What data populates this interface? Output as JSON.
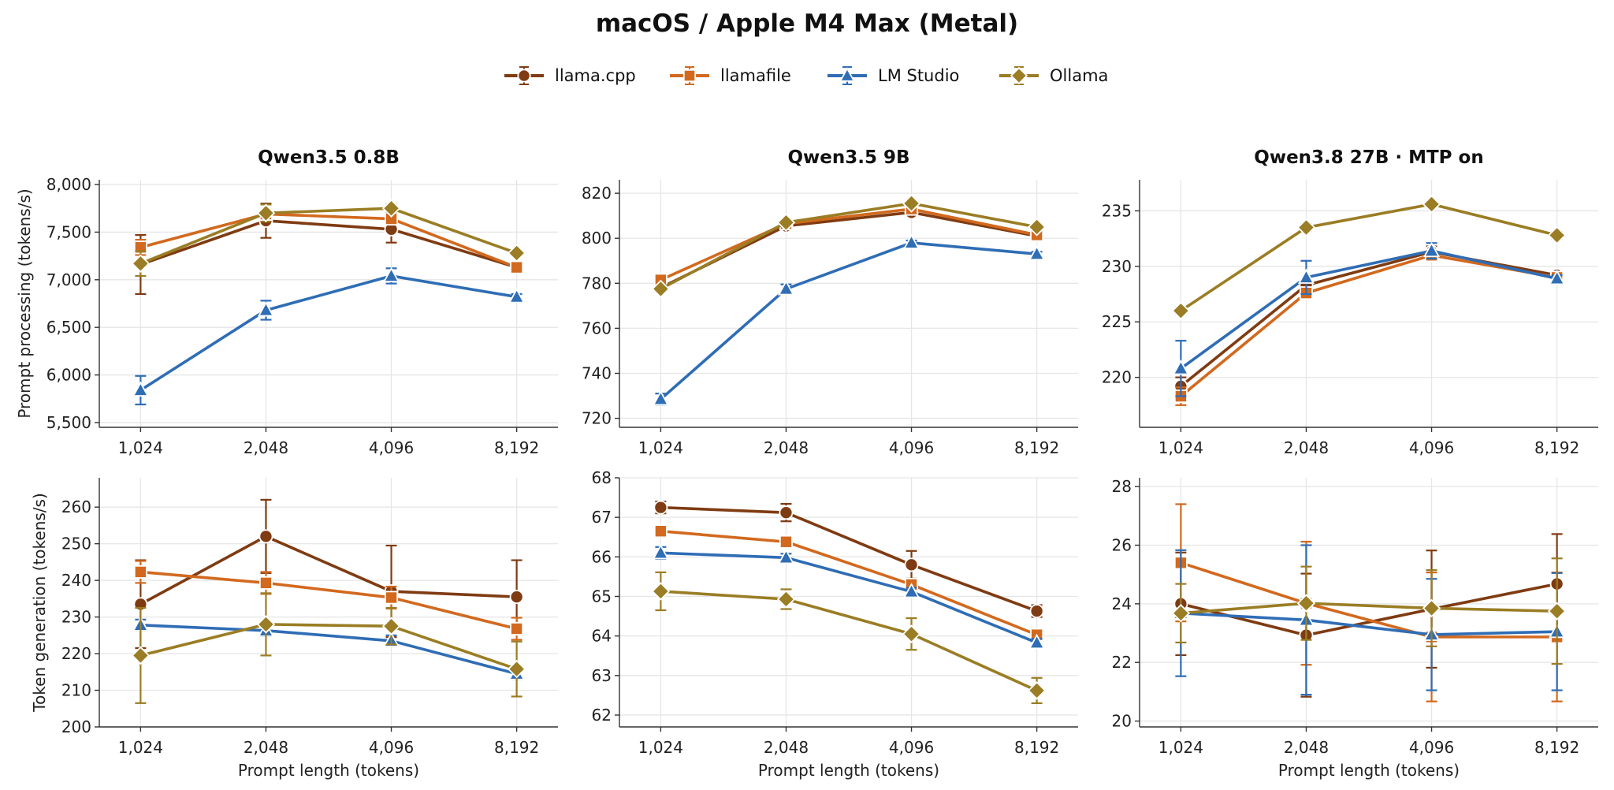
{
  "figure_title": "macOS / Apple M4 Max (Metal)",
  "colors": {
    "llama.cpp": "#7f3b12",
    "llamafile": "#d2691e",
    "LM Studio": "#2f6db5",
    "Ollama": "#9a7d24"
  },
  "legend": [
    {
      "name": "llama.cpp",
      "marker": "circle"
    },
    {
      "name": "llamafile",
      "marker": "square"
    },
    {
      "name": "LM Studio",
      "marker": "triangle"
    },
    {
      "name": "Ollama",
      "marker": "diamond"
    }
  ],
  "chart_data": [
    {
      "type": "line",
      "title": "Qwen3.5 0.8B",
      "xlabel": "",
      "ylabel": "Prompt processing (tokens/s)",
      "categories": [
        "1,024",
        "2,048",
        "4,096",
        "8,192"
      ],
      "ylim": [
        5450,
        8050
      ],
      "yticks": [
        5500,
        6000,
        6500,
        7000,
        7500,
        8000
      ],
      "ytick_labels": [
        "5,500",
        "6,000",
        "6,500",
        "7,000",
        "7,500",
        "8,000"
      ],
      "series": [
        {
          "name": "llama.cpp",
          "values": [
            7160,
            7620,
            7530,
            7130
          ],
          "err": [
            310,
            180,
            140,
            30
          ]
        },
        {
          "name": "llamafile",
          "values": [
            7340,
            7690,
            7640,
            7130
          ],
          "err": [
            80,
            60,
            60,
            30
          ]
        },
        {
          "name": "LM Studio",
          "values": [
            5840,
            6680,
            7040,
            6820
          ],
          "err": [
            150,
            100,
            80,
            30
          ]
        },
        {
          "name": "Ollama",
          "values": [
            7170,
            7700,
            7750,
            7280
          ],
          "err": [
            130,
            90,
            40,
            30
          ]
        }
      ]
    },
    {
      "type": "line",
      "title": "Qwen3.5 9B",
      "xlabel": "",
      "ylabel": "",
      "categories": [
        "1,024",
        "2,048",
        "4,096",
        "8,192"
      ],
      "ylim": [
        716,
        826
      ],
      "yticks": [
        720,
        740,
        760,
        780,
        800,
        820
      ],
      "ytick_labels": [
        "720",
        "740",
        "760",
        "780",
        "800",
        "820"
      ],
      "series": [
        {
          "name": "llama.cpp",
          "values": [
            778,
            805.5,
            811.5,
            801
          ],
          "err": [
            1,
            1,
            1,
            1
          ]
        },
        {
          "name": "llamafile",
          "values": [
            781.5,
            806.5,
            813,
            801.5
          ],
          "err": [
            1,
            1,
            1,
            1
          ]
        },
        {
          "name": "LM Studio",
          "values": [
            728.5,
            777.5,
            798,
            793
          ],
          "err": [
            2.5,
            2,
            1,
            1
          ]
        },
        {
          "name": "Ollama",
          "values": [
            777.5,
            807,
            815.5,
            805
          ],
          "err": [
            1,
            1,
            1,
            1
          ]
        }
      ]
    },
    {
      "type": "line",
      "title": "Qwen3.8 27B  ·  MTP on",
      "xlabel": "",
      "ylabel": "",
      "categories": [
        "1,024",
        "2,048",
        "4,096",
        "8,192"
      ],
      "ylim": [
        215.5,
        237.8
      ],
      "yticks": [
        220,
        225,
        230,
        235
      ],
      "ytick_labels": [
        "220",
        "225",
        "230",
        "235"
      ],
      "series": [
        {
          "name": "llama.cpp",
          "values": [
            219.2,
            228.3,
            231.3,
            229.2
          ],
          "err": [
            0.8,
            0.5,
            0.5,
            0.3
          ]
        },
        {
          "name": "llamafile",
          "values": [
            218.3,
            227.6,
            231.0,
            229.0
          ],
          "err": [
            0.8,
            0.5,
            0.5,
            0.3
          ]
        },
        {
          "name": "LM Studio",
          "values": [
            220.8,
            229.0,
            231.4,
            228.9
          ],
          "err": [
            2.5,
            1.5,
            0.7,
            0.3
          ]
        },
        {
          "name": "Ollama",
          "values": [
            226.0,
            233.5,
            235.6,
            232.8
          ],
          "err": [
            0.3,
            0.3,
            0.3,
            0.3
          ]
        }
      ]
    },
    {
      "type": "line",
      "title": "",
      "xlabel": "Prompt length (tokens)",
      "ylabel": "Token generation (tokens/s)",
      "categories": [
        "1,024",
        "2,048",
        "4,096",
        "8,192"
      ],
      "ylim": [
        200,
        268
      ],
      "yticks": [
        200,
        210,
        220,
        230,
        240,
        250,
        260
      ],
      "ytick_labels": [
        "200",
        "210",
        "220",
        "230",
        "240",
        "250",
        "260"
      ],
      "series": [
        {
          "name": "llama.cpp",
          "values": [
            233.5,
            252,
            237,
            235.5
          ],
          "err": [
            12,
            10,
            12.5,
            10
          ]
        },
        {
          "name": "llamafile",
          "values": [
            242.3,
            239.3,
            235.3,
            226.8
          ],
          "err": [
            3,
            3,
            3,
            3
          ]
        },
        {
          "name": "LM Studio",
          "values": [
            227.8,
            226.3,
            223.5,
            214.5
          ],
          "err": [
            1.5,
            1.5,
            1.5,
            1.5
          ]
        },
        {
          "name": "Ollama",
          "values": [
            219.5,
            228,
            227.5,
            215.8
          ],
          "err": [
            13,
            8.5,
            5,
            7.5
          ]
        }
      ]
    },
    {
      "type": "line",
      "title": "",
      "xlabel": "Prompt length (tokens)",
      "ylabel": "",
      "categories": [
        "1,024",
        "2,048",
        "4,096",
        "8,192"
      ],
      "ylim": [
        61.7,
        68
      ],
      "yticks": [
        62,
        63,
        64,
        65,
        66,
        67,
        68
      ],
      "ytick_labels": [
        "62",
        "63",
        "64",
        "65",
        "66",
        "67",
        "68"
      ],
      "series": [
        {
          "name": "llama.cpp",
          "values": [
            67.25,
            67.12,
            65.8,
            64.63
          ],
          "err": [
            0.15,
            0.22,
            0.35,
            0.15
          ]
        },
        {
          "name": "llamafile",
          "values": [
            66.65,
            66.38,
            65.3,
            64.03
          ],
          "err": [
            0.1,
            0.1,
            0.1,
            0.1
          ]
        },
        {
          "name": "LM Studio",
          "values": [
            66.1,
            65.98,
            65.12,
            63.83
          ],
          "err": [
            0.15,
            0.1,
            0.1,
            0.1
          ]
        },
        {
          "name": "Ollama",
          "values": [
            65.13,
            64.93,
            64.05,
            62.62
          ],
          "err": [
            0.48,
            0.25,
            0.4,
            0.32
          ]
        }
      ]
    },
    {
      "type": "line",
      "title": "",
      "xlabel": "Prompt length (tokens)",
      "ylabel": "",
      "categories": [
        "1,024",
        "2,048",
        "4,096",
        "8,192"
      ],
      "ylim": [
        19.8,
        28.3
      ],
      "yticks": [
        20,
        22,
        24,
        26,
        28
      ],
      "ytick_labels": [
        "20",
        "22",
        "24",
        "26",
        "28"
      ],
      "series": [
        {
          "name": "llama.cpp",
          "values": [
            24.0,
            22.93,
            23.82,
            24.68
          ],
          "err": [
            1.75,
            2.1,
            2.0,
            1.7
          ]
        },
        {
          "name": "llamafile",
          "values": [
            25.4,
            24.02,
            22.87,
            22.87
          ],
          "err": [
            2.0,
            2.1,
            2.2,
            2.2
          ]
        },
        {
          "name": "LM Studio",
          "values": [
            23.68,
            23.45,
            22.95,
            23.05
          ],
          "err": [
            2.15,
            2.55,
            1.9,
            2.0
          ]
        },
        {
          "name": "Ollama",
          "values": [
            23.68,
            24.02,
            23.85,
            23.75
          ],
          "err": [
            1.0,
            1.25,
            1.3,
            1.8
          ]
        }
      ]
    }
  ]
}
